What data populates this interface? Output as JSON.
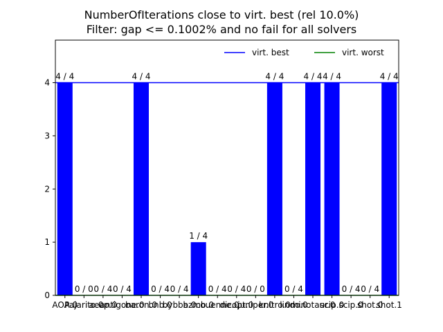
{
  "chart_data": {
    "type": "bar",
    "title_lines": [
      "NumberOfIterations close to virt. best (rel 10.0%)",
      "Filter: gap <= 0.1002% and no fail for all solvers"
    ],
    "categories": [
      "AOA.0",
      "Pajarito.0",
      "aecp.0",
      "antigone.0",
      "baron.0",
      "bnb.0",
      "bybba.0",
      "bzmb.0",
      "couenne.0",
      "dicopt.0",
      "juniper.0",
      "knitro.0",
      "lindo.0",
      "minotaur.0",
      "scip.0",
      "scip.0",
      "shot.0",
      "shot.1"
    ],
    "values": [
      4,
      0,
      0,
      0,
      4,
      0,
      0,
      1,
      0,
      0,
      0,
      4,
      0,
      4,
      4,
      0,
      0,
      4
    ],
    "bar_labels": [
      "4 / 4",
      "0 / 0",
      "0 / 4",
      "0 / 4",
      "4 / 4",
      "0 / 4",
      "0 / 4",
      "1 / 4",
      "0 / 4",
      "0 / 4",
      "0 / 0",
      "4 / 4",
      "0 / 4",
      "4 / 4",
      "4 / 4",
      "0 / 4",
      "0 / 4",
      "4 / 4"
    ],
    "ylim": [
      0,
      4.8
    ],
    "yticks": [
      "0",
      "1",
      "2",
      "3",
      "4"
    ],
    "bar_color": "#0000ff",
    "lines": [
      {
        "name": "virt. best",
        "value": 4,
        "color": "#0000ff"
      },
      {
        "name": "virt. worst",
        "value": 0,
        "color": "#008000"
      }
    ],
    "legend_position": "upper-right",
    "grid": false
  }
}
